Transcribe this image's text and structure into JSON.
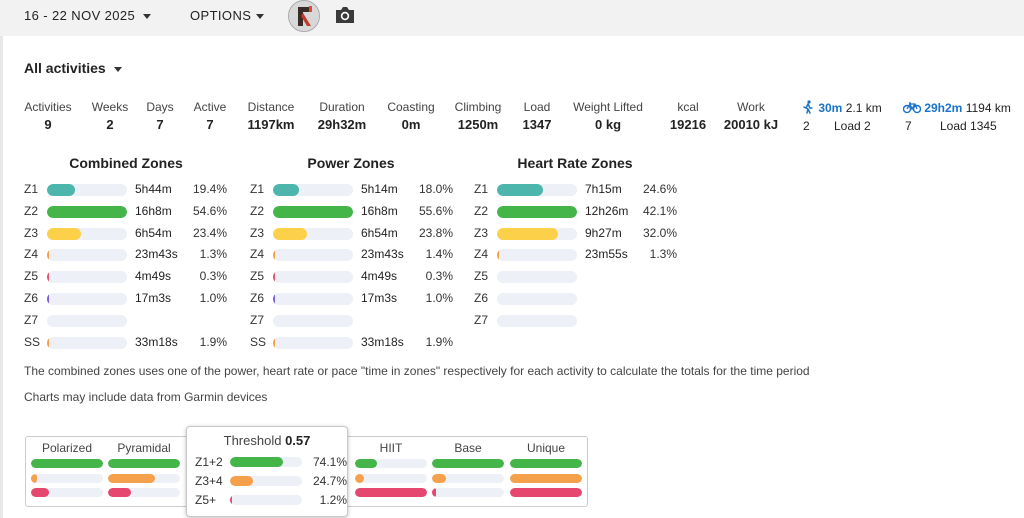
{
  "header": {
    "date_range": "16 - 22 NOV 2025",
    "options_label": "OPTIONS"
  },
  "filter": {
    "label": "All activities"
  },
  "stats": [
    {
      "label": "Activities",
      "value": "9"
    },
    {
      "label": "Weeks",
      "value": "2"
    },
    {
      "label": "Days",
      "value": "7"
    },
    {
      "label": "Active",
      "value": "7"
    },
    {
      "label": "Distance",
      "value": "1197km"
    },
    {
      "label": "Duration",
      "value": "29h32m"
    },
    {
      "label": "Coasting",
      "value": "0m"
    },
    {
      "label": "Climbing",
      "value": "1250m"
    },
    {
      "label": "Load",
      "value": "1347"
    },
    {
      "label": "Weight Lifted",
      "value": "0 kg"
    },
    {
      "label": "kcal",
      "value": "19216"
    },
    {
      "label": "Work",
      "value": "20010 kJ"
    }
  ],
  "sports": [
    {
      "icon": "walking-icon",
      "time": "30m",
      "distance": "2.1 km",
      "count": "2",
      "load": "Load 2"
    },
    {
      "icon": "bicycle-icon",
      "time": "29h2m",
      "distance": "1194 km",
      "count": "7",
      "load": "Load 1345"
    }
  ],
  "zone_tables": [
    {
      "title": "Combined Zones",
      "rows": [
        {
          "zone": "Z1",
          "time": "5h44m",
          "pct": "19.4%",
          "frac": 0.35,
          "color": "#4db6ac"
        },
        {
          "zone": "Z2",
          "time": "16h8m",
          "pct": "54.6%",
          "frac": 1.0,
          "color": "#43b549"
        },
        {
          "zone": "Z3",
          "time": "6h54m",
          "pct": "23.4%",
          "frac": 0.43,
          "color": "#fdd049"
        },
        {
          "zone": "Z4",
          "time": "23m43s",
          "pct": "1.3%",
          "frac": 0.025,
          "color": "#f5a04a"
        },
        {
          "zone": "Z5",
          "time": "4m49s",
          "pct": "0.3%",
          "frac": 0.012,
          "color": "#e5546f"
        },
        {
          "zone": "Z6",
          "time": "17m3s",
          "pct": "1.0%",
          "frac": 0.022,
          "color": "#7c5ce0"
        },
        {
          "zone": "Z7",
          "time": "",
          "pct": "",
          "frac": 0,
          "color": "#555555"
        },
        {
          "zone": "SS",
          "time": "33m18s",
          "pct": "1.9%",
          "frac": 0.03,
          "color": "#f5a04a"
        }
      ]
    },
    {
      "title": "Power Zones",
      "rows": [
        {
          "zone": "Z1",
          "time": "5h14m",
          "pct": "18.0%",
          "frac": 0.32,
          "color": "#4db6ac"
        },
        {
          "zone": "Z2",
          "time": "16h8m",
          "pct": "55.6%",
          "frac": 1.0,
          "color": "#43b549"
        },
        {
          "zone": "Z3",
          "time": "6h54m",
          "pct": "23.8%",
          "frac": 0.43,
          "color": "#fdd049"
        },
        {
          "zone": "Z4",
          "time": "23m43s",
          "pct": "1.4%",
          "frac": 0.025,
          "color": "#f5a04a"
        },
        {
          "zone": "Z5",
          "time": "4m49s",
          "pct": "0.3%",
          "frac": 0.012,
          "color": "#e5546f"
        },
        {
          "zone": "Z6",
          "time": "17m3s",
          "pct": "1.0%",
          "frac": 0.022,
          "color": "#7c5ce0"
        },
        {
          "zone": "Z7",
          "time": "",
          "pct": "",
          "frac": 0,
          "color": "#555555"
        },
        {
          "zone": "SS",
          "time": "33m18s",
          "pct": "1.9%",
          "frac": 0.03,
          "color": "#f5a04a"
        }
      ]
    },
    {
      "title": "Heart Rate Zones",
      "rows": [
        {
          "zone": "Z1",
          "time": "7h15m",
          "pct": "24.6%",
          "frac": 0.58,
          "color": "#4db6ac"
        },
        {
          "zone": "Z2",
          "time": "12h26m",
          "pct": "42.1%",
          "frac": 1.0,
          "color": "#43b549"
        },
        {
          "zone": "Z3",
          "time": "9h27m",
          "pct": "32.0%",
          "frac": 0.76,
          "color": "#fdd049"
        },
        {
          "zone": "Z4",
          "time": "23m55s",
          "pct": "1.3%",
          "frac": 0.03,
          "color": "#f5a04a"
        },
        {
          "zone": "Z5",
          "time": "",
          "pct": "",
          "frac": 0,
          "color": "#e5546f"
        },
        {
          "zone": "Z6",
          "time": "",
          "pct": "",
          "frac": 0,
          "color": "#7c5ce0"
        },
        {
          "zone": "Z7",
          "time": "",
          "pct": "",
          "frac": 0,
          "color": "#555555"
        }
      ]
    }
  ],
  "notes": {
    "combined": "The combined zones uses one of the power, heart rate or pace \"time in zones\" respectively for each activity to calculate the totals for the time period",
    "garmin": "Charts may include data from Garmin devices"
  },
  "distribution": [
    {
      "name": "Polarized",
      "bars": [
        {
          "frac": 1.0,
          "color": "#43b549"
        },
        {
          "frac": 0.08,
          "color": "#f5a04a"
        },
        {
          "frac": 0.25,
          "color": "#e5476f"
        }
      ]
    },
    {
      "name": "Pyramidal",
      "bars": [
        {
          "frac": 1.0,
          "color": "#43b549"
        },
        {
          "frac": 0.65,
          "color": "#f5a04a"
        },
        {
          "frac": 0.32,
          "color": "#e5476f"
        }
      ]
    },
    {
      "name": "HIIT",
      "bars": [
        {
          "frac": 0.3,
          "color": "#43b549"
        },
        {
          "frac": 0.12,
          "color": "#f5a04a"
        },
        {
          "frac": 1.0,
          "color": "#e5476f"
        }
      ]
    },
    {
      "name": "Base",
      "bars": [
        {
          "frac": 1.0,
          "color": "#43b549"
        },
        {
          "frac": 0.2,
          "color": "#f5a04a"
        },
        {
          "frac": 0.03,
          "color": "#e5476f"
        }
      ]
    },
    {
      "name": "Unique",
      "bars": [
        {
          "frac": 1.0,
          "color": "#43b549"
        },
        {
          "frac": 1.0,
          "color": "#f5a04a"
        },
        {
          "frac": 1.0,
          "color": "#e5476f"
        }
      ]
    }
  ],
  "tooltip": {
    "title": "Threshold",
    "score": "0.57",
    "rows": [
      {
        "label": "Z1+2",
        "value": "74.1%",
        "frac": 0.741,
        "color": "#43b549"
      },
      {
        "label": "Z3+4",
        "value": "24.7%",
        "frac": 0.32,
        "color": "#f5a04a"
      },
      {
        "label": "Z5+",
        "value": "1.2%",
        "frac": 0.02,
        "color": "#e5476f"
      }
    ]
  }
}
